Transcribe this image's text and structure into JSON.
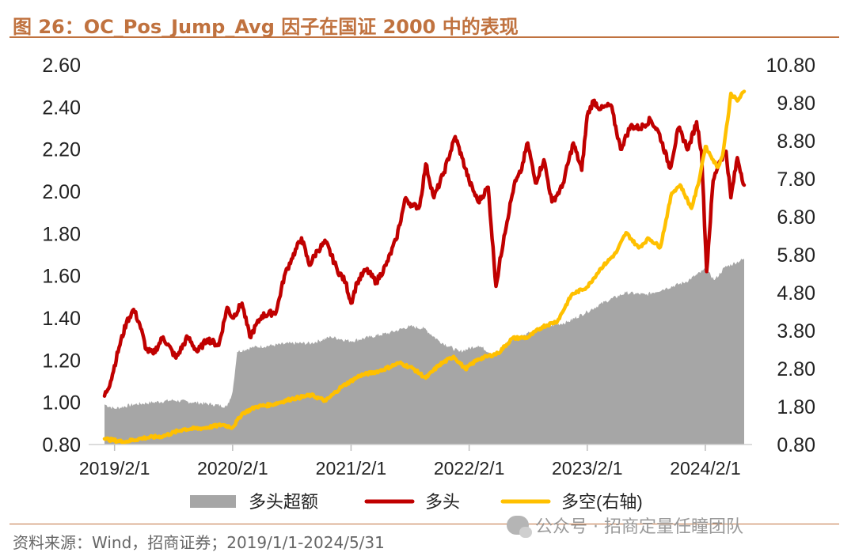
{
  "title": "图 26：OC_Pos_Jump_Avg 因子在国证 2000 中的表现",
  "footer": {
    "source": "资料来源：Wind，招商证券；2019/1/1-2024/5/31",
    "watermark": "公众号 · 招商定量任瞳团队"
  },
  "colors": {
    "excess": "#a6a6a6",
    "long": "#c00000",
    "long_short": "#ffc000",
    "title": "#c0723f"
  },
  "chart_data": {
    "type": "line",
    "title": "OC_Pos_Jump_Avg 因子在国证 2000 中的表现",
    "x_ticks": [
      "2019/2/1",
      "2020/2/1",
      "2021/2/1",
      "2022/2/1",
      "2023/2/1",
      "2024/2/1"
    ],
    "x_range": [
      "2019/1/1",
      "2024/5/31"
    ],
    "y_left": {
      "range": [
        0.8,
        2.6
      ],
      "ticks": [
        "0.80",
        "1.00",
        "1.20",
        "1.40",
        "1.60",
        "1.80",
        "2.00",
        "2.20",
        "2.40",
        "2.60"
      ]
    },
    "y_right": {
      "range": [
        0.8,
        10.8
      ],
      "ticks": [
        "0.80",
        "1.80",
        "2.80",
        "3.80",
        "4.80",
        "5.80",
        "6.80",
        "7.80",
        "8.80",
        "9.80",
        "10.80"
      ]
    },
    "legend_position": "bottom",
    "series": [
      {
        "name": "多头超额",
        "type": "area",
        "axis": "left",
        "points": [
          [
            "2019-01-01",
            0.99
          ],
          [
            "2019-02-01",
            0.97
          ],
          [
            "2019-04-01",
            0.99
          ],
          [
            "2019-06-01",
            1.0
          ],
          [
            "2019-08-01",
            1.01
          ],
          [
            "2019-10-01",
            1.0
          ],
          [
            "2019-12-01",
            0.99
          ],
          [
            "2020-01-15",
            0.98
          ],
          [
            "2020-02-01",
            1.05
          ],
          [
            "2020-02-15",
            1.24
          ],
          [
            "2020-04-01",
            1.26
          ],
          [
            "2020-06-01",
            1.27
          ],
          [
            "2020-08-01",
            1.28
          ],
          [
            "2020-10-01",
            1.28
          ],
          [
            "2020-12-01",
            1.31
          ],
          [
            "2021-02-01",
            1.29
          ],
          [
            "2021-04-01",
            1.31
          ],
          [
            "2021-06-01",
            1.33
          ],
          [
            "2021-08-01",
            1.36
          ],
          [
            "2021-09-15",
            1.35
          ],
          [
            "2021-11-01",
            1.29
          ],
          [
            "2022-01-01",
            1.24
          ],
          [
            "2022-03-01",
            1.27
          ],
          [
            "2022-04-25",
            1.22
          ],
          [
            "2022-06-01",
            1.29
          ],
          [
            "2022-08-01",
            1.33
          ],
          [
            "2022-10-01",
            1.36
          ],
          [
            "2022-12-01",
            1.38
          ],
          [
            "2023-02-01",
            1.43
          ],
          [
            "2023-04-01",
            1.48
          ],
          [
            "2023-06-01",
            1.52
          ],
          [
            "2023-08-01",
            1.51
          ],
          [
            "2023-10-01",
            1.54
          ],
          [
            "2023-12-01",
            1.57
          ],
          [
            "2024-02-01",
            1.63
          ],
          [
            "2024-03-01",
            1.58
          ],
          [
            "2024-04-01",
            1.64
          ],
          [
            "2024-05-31",
            1.68
          ]
        ]
      },
      {
        "name": "多头",
        "type": "line",
        "axis": "left",
        "points": [
          [
            "2019-01-01",
            1.03
          ],
          [
            "2019-01-20",
            1.1
          ],
          [
            "2019-02-15",
            1.26
          ],
          [
            "2019-03-10",
            1.38
          ],
          [
            "2019-04-01",
            1.44
          ],
          [
            "2019-04-20",
            1.37
          ],
          [
            "2019-05-10",
            1.25
          ],
          [
            "2019-06-01",
            1.23
          ],
          [
            "2019-07-01",
            1.31
          ],
          [
            "2019-08-10",
            1.21
          ],
          [
            "2019-09-15",
            1.31
          ],
          [
            "2019-10-15",
            1.24
          ],
          [
            "2019-11-15",
            1.3
          ],
          [
            "2019-12-20",
            1.27
          ],
          [
            "2020-01-15",
            1.45
          ],
          [
            "2020-02-01",
            1.4
          ],
          [
            "2020-03-01",
            1.47
          ],
          [
            "2020-03-25",
            1.31
          ],
          [
            "2020-05-01",
            1.41
          ],
          [
            "2020-06-15",
            1.43
          ],
          [
            "2020-07-10",
            1.6
          ],
          [
            "2020-08-01",
            1.68
          ],
          [
            "2020-09-01",
            1.78
          ],
          [
            "2020-09-25",
            1.65
          ],
          [
            "2020-10-20",
            1.72
          ],
          [
            "2020-11-15",
            1.76
          ],
          [
            "2020-12-20",
            1.63
          ],
          [
            "2021-01-15",
            1.57
          ],
          [
            "2021-02-01",
            1.47
          ],
          [
            "2021-02-20",
            1.57
          ],
          [
            "2021-03-20",
            1.63
          ],
          [
            "2021-04-20",
            1.57
          ],
          [
            "2021-05-20",
            1.65
          ],
          [
            "2021-06-20",
            1.77
          ],
          [
            "2021-07-20",
            1.97
          ],
          [
            "2021-08-10",
            1.93
          ],
          [
            "2021-09-01",
            1.93
          ],
          [
            "2021-09-20",
            2.13
          ],
          [
            "2021-10-15",
            1.97
          ],
          [
            "2021-11-15",
            2.09
          ],
          [
            "2021-12-20",
            2.26
          ],
          [
            "2022-01-10",
            2.16
          ],
          [
            "2022-02-01",
            2.05
          ],
          [
            "2022-03-01",
            1.95
          ],
          [
            "2022-04-01",
            2.02
          ],
          [
            "2022-04-25",
            1.55
          ],
          [
            "2022-05-20",
            1.79
          ],
          [
            "2022-06-20",
            2.03
          ],
          [
            "2022-07-10",
            2.09
          ],
          [
            "2022-08-01",
            2.23
          ],
          [
            "2022-08-25",
            2.04
          ],
          [
            "2022-09-20",
            2.15
          ],
          [
            "2022-10-15",
            1.95
          ],
          [
            "2022-11-15",
            2.02
          ],
          [
            "2022-12-20",
            2.23
          ],
          [
            "2023-01-15",
            2.1
          ],
          [
            "2023-02-01",
            2.36
          ],
          [
            "2023-02-20",
            2.43
          ],
          [
            "2023-03-15",
            2.39
          ],
          [
            "2023-04-15",
            2.41
          ],
          [
            "2023-05-15",
            2.2
          ],
          [
            "2023-06-15",
            2.31
          ],
          [
            "2023-07-15",
            2.3
          ],
          [
            "2023-08-15",
            2.34
          ],
          [
            "2023-09-10",
            2.28
          ],
          [
            "2023-10-15",
            2.11
          ],
          [
            "2023-11-10",
            2.3
          ],
          [
            "2023-12-10",
            2.2
          ],
          [
            "2024-01-05",
            2.33
          ],
          [
            "2024-01-20",
            2.19
          ],
          [
            "2024-02-05",
            1.62
          ],
          [
            "2024-02-25",
            2.05
          ],
          [
            "2024-03-15",
            2.14
          ],
          [
            "2024-04-05",
            2.19
          ],
          [
            "2024-04-20",
            1.97
          ],
          [
            "2024-05-10",
            2.16
          ],
          [
            "2024-05-31",
            2.03
          ]
        ]
      },
      {
        "name": "多空(右轴)",
        "type": "line",
        "axis": "right",
        "points": [
          [
            "2019-01-01",
            0.95
          ],
          [
            "2019-03-01",
            0.87
          ],
          [
            "2019-05-01",
            0.97
          ],
          [
            "2019-07-01",
            1.02
          ],
          [
            "2019-09-01",
            1.2
          ],
          [
            "2019-11-01",
            1.23
          ],
          [
            "2020-01-01",
            1.32
          ],
          [
            "2020-02-01",
            1.25
          ],
          [
            "2020-03-01",
            1.61
          ],
          [
            "2020-04-15",
            1.8
          ],
          [
            "2020-06-01",
            1.85
          ],
          [
            "2020-08-01",
            2.0
          ],
          [
            "2020-10-01",
            2.1
          ],
          [
            "2020-11-15",
            1.95
          ],
          [
            "2021-01-01",
            2.31
          ],
          [
            "2021-03-01",
            2.62
          ],
          [
            "2021-05-01",
            2.74
          ],
          [
            "2021-07-01",
            2.95
          ],
          [
            "2021-08-10",
            2.81
          ],
          [
            "2021-09-20",
            2.55
          ],
          [
            "2021-11-01",
            2.9
          ],
          [
            "2021-12-15",
            3.12
          ],
          [
            "2022-01-20",
            2.79
          ],
          [
            "2022-03-01",
            3.05
          ],
          [
            "2022-05-01",
            3.2
          ],
          [
            "2022-06-15",
            3.6
          ],
          [
            "2022-08-01",
            3.62
          ],
          [
            "2022-09-15",
            3.9
          ],
          [
            "2022-11-01",
            4.05
          ],
          [
            "2022-12-15",
            4.75
          ],
          [
            "2023-02-01",
            4.95
          ],
          [
            "2023-03-15",
            5.44
          ],
          [
            "2023-05-01",
            5.85
          ],
          [
            "2023-06-01",
            6.38
          ],
          [
            "2023-07-10",
            5.98
          ],
          [
            "2023-08-10",
            6.23
          ],
          [
            "2023-09-15",
            6.0
          ],
          [
            "2023-10-20",
            7.42
          ],
          [
            "2023-11-15",
            7.64
          ],
          [
            "2023-12-20",
            7.02
          ],
          [
            "2024-01-10",
            7.65
          ],
          [
            "2024-02-01",
            8.65
          ],
          [
            "2024-02-25",
            8.3
          ],
          [
            "2024-03-10",
            8.1
          ],
          [
            "2024-03-25",
            8.4
          ],
          [
            "2024-04-10",
            9.35
          ],
          [
            "2024-04-20",
            10.05
          ],
          [
            "2024-05-10",
            9.85
          ],
          [
            "2024-05-31",
            10.1
          ]
        ]
      }
    ]
  }
}
